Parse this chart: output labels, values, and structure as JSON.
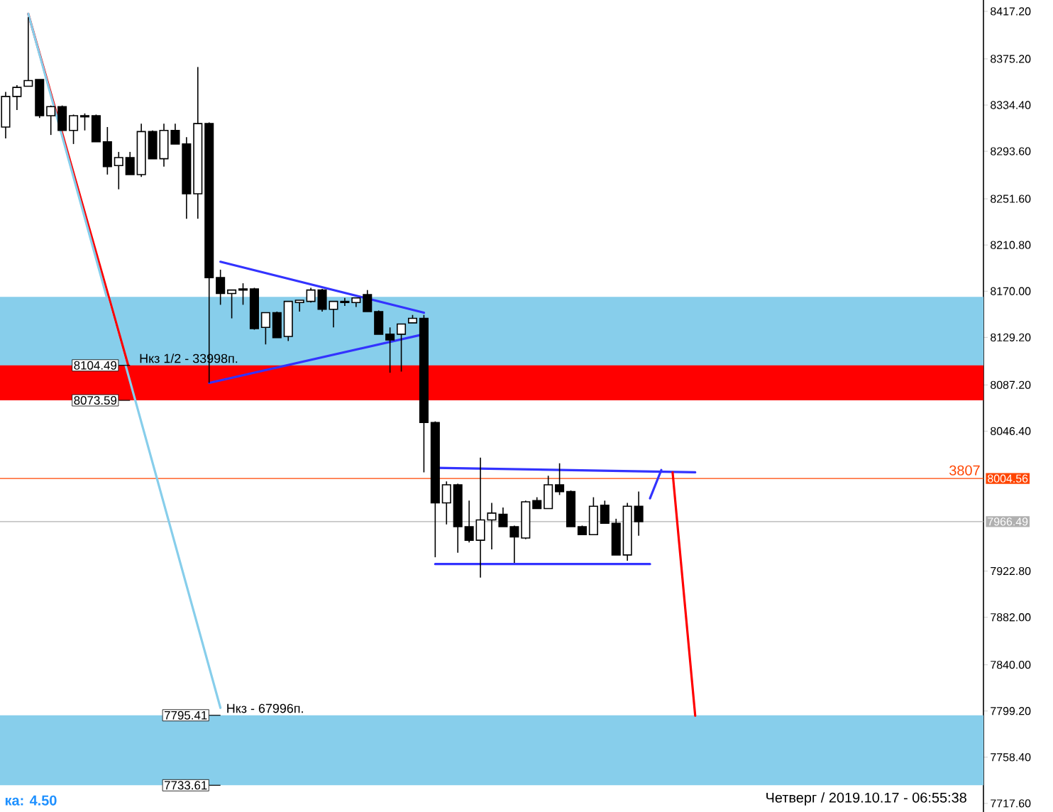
{
  "chart_data": {
    "type": "candlestick",
    "categories": [
      null,
      null,
      null,
      null,
      null,
      null,
      null,
      null,
      null,
      null,
      null,
      null,
      null,
      null,
      null,
      null,
      null,
      null,
      null,
      null,
      null,
      null,
      null,
      null,
      null,
      null,
      null,
      null,
      null,
      null,
      null,
      null,
      null,
      null,
      null,
      null,
      null,
      null,
      null,
      null,
      null,
      null,
      null,
      null,
      null,
      null,
      null,
      null,
      null,
      null,
      null,
      null,
      null,
      null,
      null,
      null,
      null,
      null,
      null,
      null,
      null,
      null,
      null,
      null,
      null,
      null,
      null,
      null,
      null,
      null,
      null,
      null,
      null,
      null,
      null,
      null,
      null,
      null,
      null,
      null,
      null,
      null,
      null,
      null,
      null,
      null,
      null
    ],
    "ohlc": [
      [
        8315,
        8346,
        8305,
        8342
      ],
      [
        8342,
        8352,
        8330,
        8350
      ],
      [
        8351,
        8412,
        8351,
        8356
      ],
      [
        8357,
        8357,
        8323,
        8325
      ],
      [
        8325,
        8334,
        8308,
        8333
      ],
      [
        8333,
        8334,
        8312,
        8312
      ],
      [
        8312,
        8326,
        8300,
        8325
      ],
      [
        8325,
        8327,
        8312,
        8324
      ],
      [
        8325,
        8326,
        8302,
        8302
      ],
      [
        8302,
        8315,
        8273,
        8280
      ],
      [
        8281,
        8293,
        8260,
        8288
      ],
      [
        8288,
        8293,
        8273,
        8273
      ],
      [
        8273,
        8318,
        8271,
        8311
      ],
      [
        8311,
        8312,
        8287,
        8287
      ],
      [
        8287,
        8318,
        8280,
        8312
      ],
      [
        8312,
        8318,
        8300,
        8300
      ],
      [
        8300,
        8306,
        8234,
        8256
      ],
      [
        8256,
        8368,
        8234,
        8318
      ],
      [
        8318,
        8319,
        8089,
        8182
      ],
      [
        8182,
        8189,
        8158,
        8168
      ],
      [
        8168,
        8171,
        8146,
        8171
      ],
      [
        8171,
        8177,
        8158,
        8172
      ],
      [
        8172,
        8173,
        8136,
        8137
      ],
      [
        8138,
        8151,
        8123,
        8151
      ],
      [
        8151,
        8152,
        8129,
        8129
      ],
      [
        8130,
        8161,
        8126,
        8161
      ],
      [
        8160,
        8162,
        8152,
        8162
      ],
      [
        8161,
        8173,
        8160,
        8171
      ],
      [
        8171,
        8172,
        8152,
        8154
      ],
      [
        8154,
        8161,
        8138,
        8161
      ],
      [
        8161,
        8164,
        8157,
        8160
      ],
      [
        8160,
        8164,
        8156,
        8164
      ],
      [
        8167,
        8171,
        8152,
        8152
      ],
      [
        8152,
        8153,
        8132,
        8132
      ],
      [
        8132,
        8138,
        8098,
        8127
      ],
      [
        8132,
        8141,
        8099,
        8141
      ],
      [
        8142,
        8149,
        8142,
        8146
      ],
      [
        8146,
        8149,
        8010,
        8054
      ],
      [
        8054,
        8055,
        7935,
        7983
      ],
      [
        7983,
        8002,
        7964,
        7999
      ],
      [
        7999,
        8000,
        7939,
        7962
      ],
      [
        7962,
        7985,
        7948,
        7950
      ],
      [
        7950,
        8023,
        7917,
        7968
      ],
      [
        7968,
        7983,
        7942,
        7974
      ],
      [
        7973,
        7979,
        7962,
        7962
      ],
      [
        7962,
        7963,
        7930,
        7953
      ],
      [
        7952,
        7985,
        7951,
        7984
      ],
      [
        7985,
        7988,
        7978,
        7978
      ],
      [
        7978,
        8007,
        7978,
        7999
      ],
      [
        7999,
        8018,
        7990,
        7993
      ],
      [
        7993,
        7994,
        7962,
        7962
      ],
      [
        7962,
        7963,
        7955,
        7955
      ],
      [
        7955,
        7988,
        7955,
        7980
      ],
      [
        7981,
        7985,
        7965,
        7965
      ],
      [
        7965,
        7969,
        7937,
        7937
      ],
      [
        7937,
        7983,
        7932,
        7980
      ],
      [
        7980,
        7993,
        7954,
        7966.49
      ],
      null,
      null,
      null,
      null,
      null,
      null,
      null,
      null,
      null,
      null,
      null,
      null,
      null,
      null,
      null,
      null,
      null,
      null,
      null,
      null,
      null,
      null,
      null,
      null,
      null,
      null,
      null,
      null,
      null,
      null
    ],
    "series": [
      {
        "type": "line",
        "color": "#3333ff",
        "values": [
          null,
          null,
          null,
          null,
          null,
          null,
          null,
          null,
          null,
          null,
          null,
          null,
          null,
          null,
          null,
          null,
          null,
          null,
          null,
          8196,
          null,
          null,
          null,
          null,
          null,
          null,
          null,
          null,
          null,
          null,
          null,
          null,
          null,
          null,
          null,
          null,
          null,
          8151,
          null,
          null,
          null,
          null,
          null,
          null,
          null,
          null,
          null,
          null,
          null,
          null,
          null,
          null,
          null,
          null,
          null,
          null,
          null,
          null,
          null,
          null,
          null,
          null,
          null,
          null,
          null,
          null,
          null,
          null,
          null,
          null,
          null,
          null,
          null,
          null,
          null,
          null,
          null,
          null,
          null,
          null,
          null,
          null,
          null,
          null,
          null,
          null,
          null
        ]
      },
      {
        "type": "line",
        "color": "#3333ff",
        "values": [
          null,
          null,
          null,
          null,
          null,
          null,
          null,
          null,
          null,
          null,
          null,
          null,
          null,
          null,
          null,
          null,
          null,
          null,
          8089,
          null,
          null,
          null,
          null,
          null,
          null,
          null,
          null,
          null,
          null,
          null,
          null,
          null,
          null,
          null,
          null,
          null,
          null,
          8132,
          null,
          null,
          null,
          null,
          null,
          null,
          null,
          null,
          null,
          null,
          null,
          null,
          null,
          null,
          null,
          null,
          null,
          null,
          null,
          null,
          null,
          null,
          null,
          null,
          null,
          null,
          null,
          null,
          null,
          null,
          null,
          null,
          null,
          null,
          null,
          null,
          null,
          null,
          null,
          null,
          null,
          null,
          null,
          null,
          null,
          null,
          null,
          null,
          null
        ]
      },
      {
        "type": "line",
        "color": "#3333ff",
        "values": [
          null,
          null,
          null,
          null,
          null,
          null,
          null,
          null,
          null,
          null,
          null,
          null,
          null,
          null,
          null,
          null,
          null,
          null,
          null,
          null,
          null,
          null,
          null,
          null,
          null,
          null,
          null,
          null,
          null,
          null,
          null,
          null,
          null,
          null,
          null,
          null,
          null,
          null,
          8014,
          null,
          null,
          null,
          null,
          null,
          null,
          null,
          null,
          null,
          null,
          null,
          null,
          null,
          null,
          null,
          null,
          null,
          null,
          null,
          null,
          null,
          null,
          8010,
          null,
          null,
          null,
          null,
          null,
          null,
          null,
          null,
          null,
          null,
          null,
          null,
          null,
          null,
          null,
          null,
          null,
          null,
          null,
          null,
          null,
          null,
          null,
          null,
          null
        ]
      },
      {
        "type": "line",
        "color": "#3333ff",
        "values": [
          null,
          null,
          null,
          null,
          null,
          null,
          null,
          null,
          null,
          null,
          null,
          null,
          null,
          null,
          null,
          null,
          null,
          null,
          null,
          null,
          null,
          null,
          null,
          null,
          null,
          null,
          null,
          null,
          null,
          null,
          null,
          null,
          null,
          null,
          null,
          null,
          null,
          null,
          7929,
          null,
          null,
          null,
          null,
          null,
          null,
          null,
          null,
          null,
          null,
          null,
          null,
          null,
          null,
          null,
          null,
          null,
          null,
          7929,
          null,
          null,
          null,
          null,
          null,
          null,
          null,
          null,
          null,
          null,
          null,
          null,
          null,
          null,
          null,
          null,
          null,
          null,
          null,
          null,
          null,
          null,
          null,
          null,
          null,
          null,
          null,
          null,
          null
        ]
      },
      {
        "type": "line",
        "color": "#3333ff",
        "values": [
          null,
          null,
          null,
          null,
          null,
          null,
          null,
          null,
          null,
          null,
          null,
          null,
          null,
          null,
          null,
          null,
          null,
          null,
          null,
          null,
          null,
          null,
          null,
          null,
          null,
          null,
          null,
          null,
          null,
          null,
          null,
          null,
          null,
          null,
          null,
          null,
          null,
          null,
          null,
          null,
          null,
          null,
          null,
          null,
          null,
          null,
          null,
          null,
          null,
          null,
          null,
          null,
          null,
          null,
          null,
          null,
          null,
          7987,
          8012,
          null,
          null,
          null,
          null,
          null,
          null,
          null,
          null,
          null,
          null,
          null,
          null,
          null,
          null,
          null,
          null,
          null,
          null,
          null,
          null,
          null,
          null,
          null,
          null,
          null,
          null,
          null,
          null
        ]
      },
      {
        "type": "line",
        "color": "#ff0000",
        "values": [
          null,
          null,
          8415,
          null,
          null,
          null,
          null,
          null,
          null,
          null,
          null,
          8099,
          null,
          null,
          null,
          null,
          null,
          null,
          null,
          null,
          null,
          null,
          null,
          null,
          null,
          null,
          null,
          null,
          null,
          null,
          null,
          null,
          null,
          null,
          null,
          null,
          null,
          null,
          null,
          null,
          null,
          null,
          null,
          null,
          null,
          null,
          null,
          null,
          null,
          null,
          null,
          null,
          null,
          null,
          null,
          null,
          null,
          null,
          null,
          null,
          null,
          null,
          null,
          null,
          null,
          null,
          null,
          null,
          null,
          null,
          null,
          null,
          null,
          null,
          null,
          null,
          null,
          null,
          null,
          null,
          null,
          null,
          null,
          null,
          null,
          null,
          null
        ]
      },
      {
        "type": "line",
        "color": "#87ceeb",
        "values": [
          null,
          null,
          8415,
          null,
          null,
          null,
          null,
          null,
          null,
          null,
          null,
          null,
          null,
          null,
          null,
          null,
          null,
          null,
          null,
          7802,
          null,
          null,
          null,
          null,
          null,
          null,
          null,
          null,
          null,
          null,
          null,
          null,
          null,
          null,
          null,
          null,
          null,
          null,
          null,
          null,
          null,
          null,
          null,
          null,
          null,
          null,
          null,
          null,
          null,
          null,
          null,
          null,
          null,
          null,
          null,
          null,
          null,
          null,
          null,
          null,
          null,
          null,
          null,
          null,
          null,
          null,
          null,
          null,
          null,
          null,
          null,
          null,
          null,
          null,
          null,
          null,
          null,
          null,
          null,
          null,
          null,
          null,
          null,
          null,
          null,
          null,
          null
        ]
      },
      {
        "type": "line",
        "color": "#ff0000",
        "values": [
          null,
          null,
          null,
          null,
          null,
          null,
          null,
          null,
          null,
          null,
          null,
          null,
          null,
          null,
          null,
          null,
          null,
          null,
          null,
          null,
          null,
          null,
          null,
          null,
          null,
          null,
          null,
          null,
          null,
          null,
          null,
          null,
          null,
          null,
          null,
          null,
          null,
          null,
          null,
          null,
          null,
          null,
          null,
          null,
          null,
          null,
          null,
          null,
          null,
          null,
          null,
          null,
          null,
          null,
          null,
          null,
          null,
          null,
          null,
          8010,
          null,
          7795,
          null,
          null,
          null,
          null,
          null,
          null,
          null,
          null,
          null,
          null,
          null,
          null,
          null,
          null,
          null,
          null,
          null,
          null,
          null,
          null,
          null,
          null,
          null,
          null,
          null
        ]
      }
    ],
    "ylim": [
      7710,
      8427.2
    ],
    "yticks": [
      {
        "value": 8417.2,
        "label": "8417.20"
      },
      {
        "value": 8375.2,
        "label": "8375.20"
      },
      {
        "value": 8334.4,
        "label": "8334.40"
      },
      {
        "value": 8293.6,
        "label": "8293.60"
      },
      {
        "value": 8251.6,
        "label": "8251.60"
      },
      {
        "value": 8210.8,
        "label": "8210.80"
      },
      {
        "value": 8170,
        "label": "8170.00"
      },
      {
        "value": 8129.2,
        "label": "8129.20"
      },
      {
        "value": 8087.2,
        "label": "8087.20"
      },
      {
        "value": 8046.4,
        "label": "8046.40"
      },
      {
        "value": 7922.8,
        "label": "7922.80"
      },
      {
        "value": 7882,
        "label": "7882.00"
      },
      {
        "value": 7840,
        "label": "7840.00"
      },
      {
        "value": 7799.2,
        "label": "7799.20"
      },
      {
        "value": 7758.4,
        "label": "7758.40"
      },
      {
        "value": 7717.6,
        "label": "7717.60"
      }
    ],
    "tick_labels": "y",
    "bands": [
      {
        "axis": "y",
        "from": 8099,
        "to": 8165,
        "color": "#87ceeb"
      },
      {
        "axis": "y",
        "from": 8073.59,
        "to": 8104.49,
        "color": "#ff0000",
        "label": "Нкз 1/2 - 33998п."
      },
      {
        "axis": "y",
        "from": 7733.61,
        "to": 7795.41,
        "color": "#87ceeb",
        "label": "Нкз - 67996п."
      }
    ],
    "ref_lines": [
      {
        "axis": "y",
        "value": 8004.56,
        "label": "8004.56",
        "color": "#ff4500"
      },
      {
        "axis": "y",
        "value": 7966.49,
        "label": "7966.49",
        "color": "#b0b0b0"
      }
    ],
    "annotations": [
      {
        "text": "8104.49",
        "y": 8104.49
      },
      {
        "text": "8073.59",
        "y": 8073.59
      },
      {
        "text": "7795.41",
        "y": 7795.41
      },
      {
        "text": "7733.61",
        "y": 7733.61
      },
      {
        "text": "3807",
        "y": 8004.56
      },
      "ка: 4.50",
      "Четверг / 2019.10.17 - 06:55:38"
    ]
  }
}
